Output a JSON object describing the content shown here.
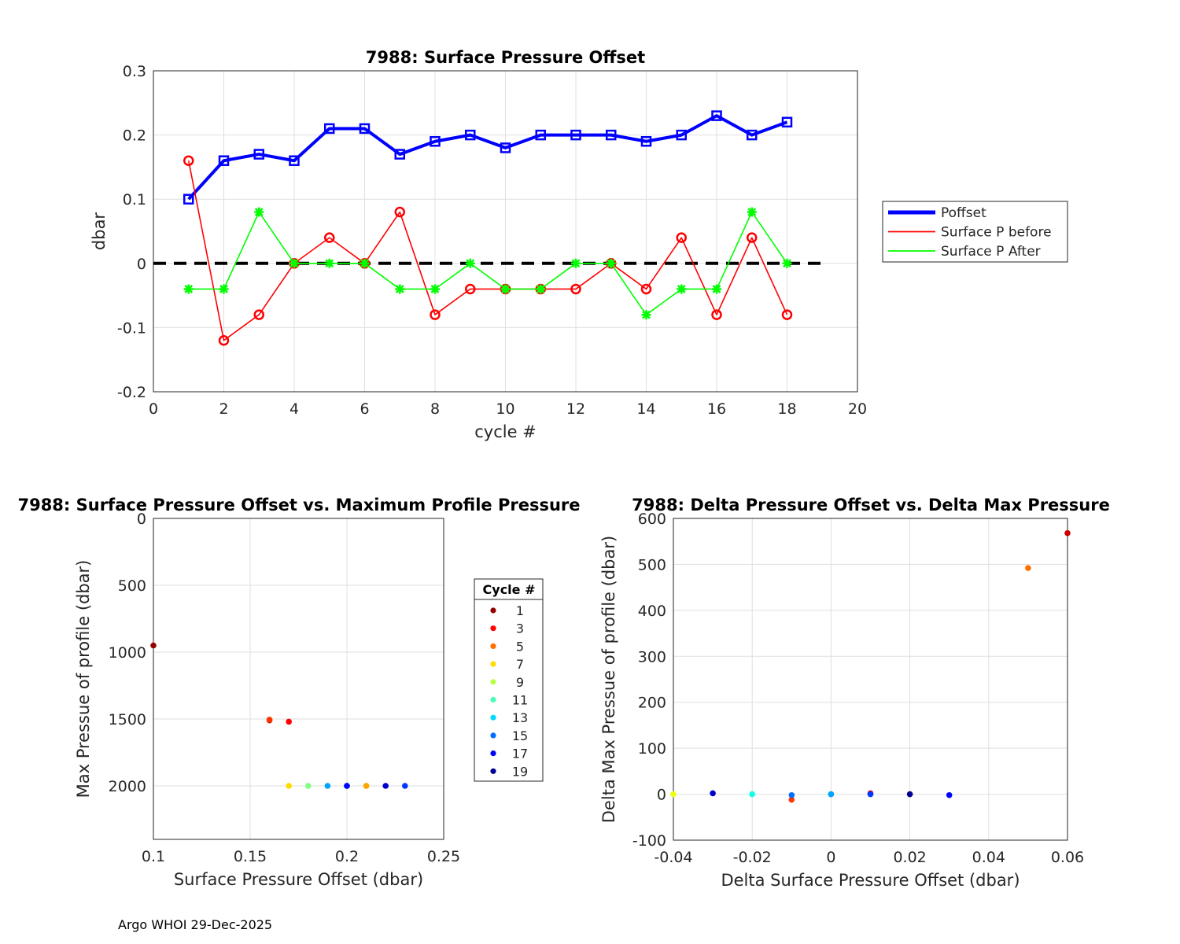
{
  "footer": "Argo WHOI 29-Dec-2025",
  "chart_data": [
    {
      "type": "line",
      "title": "7988: Surface Pressure Offset",
      "xlabel": "cycle #",
      "ylabel": "dbar",
      "xlim": [
        0,
        20
      ],
      "ylim": [
        -0.2,
        0.3
      ],
      "xticks": [
        0,
        2,
        4,
        6,
        8,
        10,
        12,
        14,
        16,
        18,
        20
      ],
      "yticks": [
        -0.2,
        -0.1,
        0,
        0.1,
        0.2,
        0.3
      ],
      "ytick_labels": [
        "-0.2",
        "-0.1",
        "0",
        "0.1",
        "0.2",
        "0.3"
      ],
      "grid": true,
      "legend_position": "outside-right",
      "zero_line": {
        "x": [
          0,
          19
        ],
        "y": 0,
        "color": "#000000",
        "style": "dashed"
      },
      "x": [
        1,
        2,
        3,
        4,
        5,
        6,
        7,
        8,
        9,
        10,
        11,
        12,
        13,
        14,
        15,
        16,
        17,
        18
      ],
      "series": [
        {
          "name": "Poffset",
          "color": "#0000ff",
          "marker": "square",
          "width": "thick",
          "values": [
            0.1,
            0.16,
            0.17,
            0.16,
            0.21,
            0.21,
            0.17,
            0.19,
            0.2,
            0.18,
            0.2,
            0.2,
            0.2,
            0.19,
            0.2,
            0.23,
            0.2,
            0.22
          ]
        },
        {
          "name": "Surface P before",
          "color": "#ff0000",
          "marker": "circle",
          "width": "thin",
          "values": [
            0.16,
            -0.12,
            -0.08,
            0.0,
            0.04,
            0.0,
            0.08,
            -0.08,
            -0.04,
            -0.04,
            -0.04,
            -0.04,
            0.0,
            -0.04,
            0.04,
            -0.08,
            0.04,
            -0.08
          ]
        },
        {
          "name": "Surface P After",
          "color": "#00ff00",
          "marker": "star",
          "width": "thin",
          "values": [
            -0.04,
            -0.04,
            0.08,
            0.0,
            0.0,
            0.0,
            -0.04,
            -0.04,
            0.0,
            -0.04,
            -0.04,
            0.0,
            0.0,
            -0.08,
            -0.04,
            -0.04,
            0.08,
            0.0
          ]
        }
      ]
    },
    {
      "type": "scatter",
      "title": "7988: Surface Pressure Offset vs. Maximum Profile Pressure",
      "xlabel": "Surface Pressure Offset (dbar)",
      "ylabel": "Max Pressue of profile (dbar)",
      "xlim": [
        0.1,
        0.25
      ],
      "ylim": [
        2400,
        0
      ],
      "y_reversed": true,
      "xticks": [
        0.1,
        0.15,
        0.2,
        0.25
      ],
      "xtick_labels": [
        "0.1",
        "0.15",
        "0.2",
        "0.25"
      ],
      "yticks": [
        0,
        500,
        1000,
        1500,
        2000
      ],
      "grid": true,
      "legend_title": "Cycle #",
      "legend_cycles": [
        1,
        3,
        5,
        7,
        9,
        11,
        13,
        15,
        17,
        19
      ],
      "points": [
        {
          "cycle": 1,
          "x": 0.1,
          "y": 950
        },
        {
          "cycle": 2,
          "x": 0.16,
          "y": 1510
        },
        {
          "cycle": 3,
          "x": 0.17,
          "y": 1520
        },
        {
          "cycle": 4,
          "x": 0.16,
          "y": 1505
        },
        {
          "cycle": 5,
          "x": 0.21,
          "y": 2000
        },
        {
          "cycle": 6,
          "x": 0.21,
          "y": 2000
        },
        {
          "cycle": 7,
          "x": 0.17,
          "y": 2000
        },
        {
          "cycle": 8,
          "x": 0.19,
          "y": 2000
        },
        {
          "cycle": 9,
          "x": 0.2,
          "y": 2000
        },
        {
          "cycle": 10,
          "x": 0.18,
          "y": 2000
        },
        {
          "cycle": 11,
          "x": 0.2,
          "y": 2000
        },
        {
          "cycle": 12,
          "x": 0.2,
          "y": 2000
        },
        {
          "cycle": 13,
          "x": 0.2,
          "y": 2000
        },
        {
          "cycle": 14,
          "x": 0.19,
          "y": 2000
        },
        {
          "cycle": 15,
          "x": 0.2,
          "y": 2000
        },
        {
          "cycle": 16,
          "x": 0.23,
          "y": 2000
        },
        {
          "cycle": 17,
          "x": 0.2,
          "y": 2000
        },
        {
          "cycle": 18,
          "x": 0.22,
          "y": 2000
        }
      ]
    },
    {
      "type": "scatter",
      "title": "7988: Delta Pressure Offset vs. Delta Max Pressure",
      "xlabel": "Delta Surface Pressure Offset (dbar)",
      "ylabel": "Delta Max Pressue of profile (dbar)",
      "xlim": [
        -0.04,
        0.06
      ],
      "ylim": [
        -100,
        600
      ],
      "xticks": [
        -0.04,
        -0.02,
        0,
        0.02,
        0.04,
        0.06
      ],
      "xtick_labels": [
        "-0.04",
        "-0.02",
        "0",
        "0.02",
        "0.04",
        "0.06"
      ],
      "yticks": [
        -100,
        0,
        100,
        200,
        300,
        400,
        500,
        600
      ],
      "grid": true,
      "points": [
        {
          "cycle": 2,
          "x": 0.06,
          "y": 568
        },
        {
          "cycle": 3,
          "x": 0.01,
          "y": 2
        },
        {
          "cycle": 4,
          "x": -0.01,
          "y": -12
        },
        {
          "cycle": 5,
          "x": 0.05,
          "y": 492
        },
        {
          "cycle": 6,
          "x": 0.0,
          "y": 0
        },
        {
          "cycle": 8,
          "x": -0.04,
          "y": 0
        },
        {
          "cycle": 9,
          "x": 0.02,
          "y": 0
        },
        {
          "cycle": 11,
          "x": -0.02,
          "y": 0
        },
        {
          "cycle": 12,
          "x": -0.02,
          "y": 0
        },
        {
          "cycle": 13,
          "x": 0.0,
          "y": 0
        },
        {
          "cycle": 14,
          "x": 0.0,
          "y": 0
        },
        {
          "cycle": 15,
          "x": -0.01,
          "y": -2
        },
        {
          "cycle": 16,
          "x": 0.01,
          "y": 0
        },
        {
          "cycle": 17,
          "x": 0.03,
          "y": -2
        },
        {
          "cycle": 18,
          "x": -0.03,
          "y": 2
        },
        {
          "cycle": 19,
          "x": 0.02,
          "y": 0
        }
      ]
    }
  ]
}
